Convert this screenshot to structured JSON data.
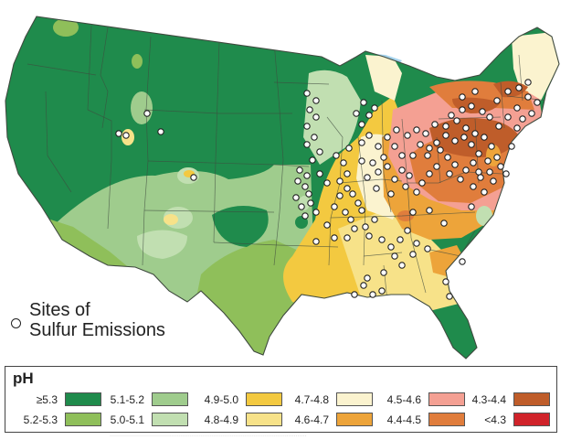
{
  "map": {
    "region": "Contiguous United States",
    "measure": "pH"
  },
  "sites_legend": {
    "line1": "Sites of",
    "line2": "Sulfur Emissions"
  },
  "legend": {
    "title": "pH",
    "items": [
      {
        "label": "≥5.3",
        "color": "#1f8b4c"
      },
      {
        "label": "5.2-5.3",
        "color": "#8fbf5a"
      },
      {
        "label": "5.1-5.2",
        "color": "#9fcc8d"
      },
      {
        "label": "5.0-5.1",
        "color": "#c1dfb1"
      },
      {
        "label": "4.9-5.0",
        "color": "#f3c940"
      },
      {
        "label": "4.8-4.9",
        "color": "#f7e289"
      },
      {
        "label": "4.7-4.8",
        "color": "#fbf3cf"
      },
      {
        "label": "4.6-4.7",
        "color": "#eda43a"
      },
      {
        "label": "4.5-4.6",
        "color": "#f4a093"
      },
      {
        "label": "4.4-4.5",
        "color": "#e07d3c"
      },
      {
        "label": "4.3-4.4",
        "color": "#bf5d2a"
      },
      {
        "label": "<4.3",
        "color": "#d0232a"
      }
    ]
  },
  "colors": {
    "great_lakes": "#a6d4ee",
    "state_border": "#3f4a3f",
    "site_fill": "#ffffff",
    "site_stroke": "#222222"
  }
}
